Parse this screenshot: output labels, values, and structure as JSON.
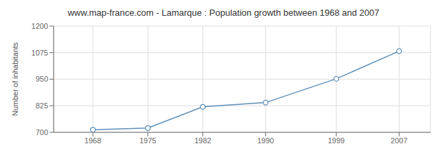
{
  "chart_data": {
    "type": "line",
    "title": "www.map-france.com - Lamarque : Population growth between 1968 and 2007",
    "ylabel": "Number of inhabitants",
    "x": [
      1968,
      1975,
      1982,
      1990,
      1999,
      2007
    ],
    "values": [
      712,
      720,
      820,
      840,
      952,
      1082
    ],
    "xlim": [
      1963,
      2011
    ],
    "xticks": [
      1968,
      1975,
      1982,
      1990,
      1999,
      2007
    ],
    "ylim": [
      700,
      1200
    ],
    "yticks": [
      700,
      825,
      950,
      1075,
      1200
    ],
    "grid": true,
    "color": "#5b8db8",
    "marker": "circle"
  }
}
